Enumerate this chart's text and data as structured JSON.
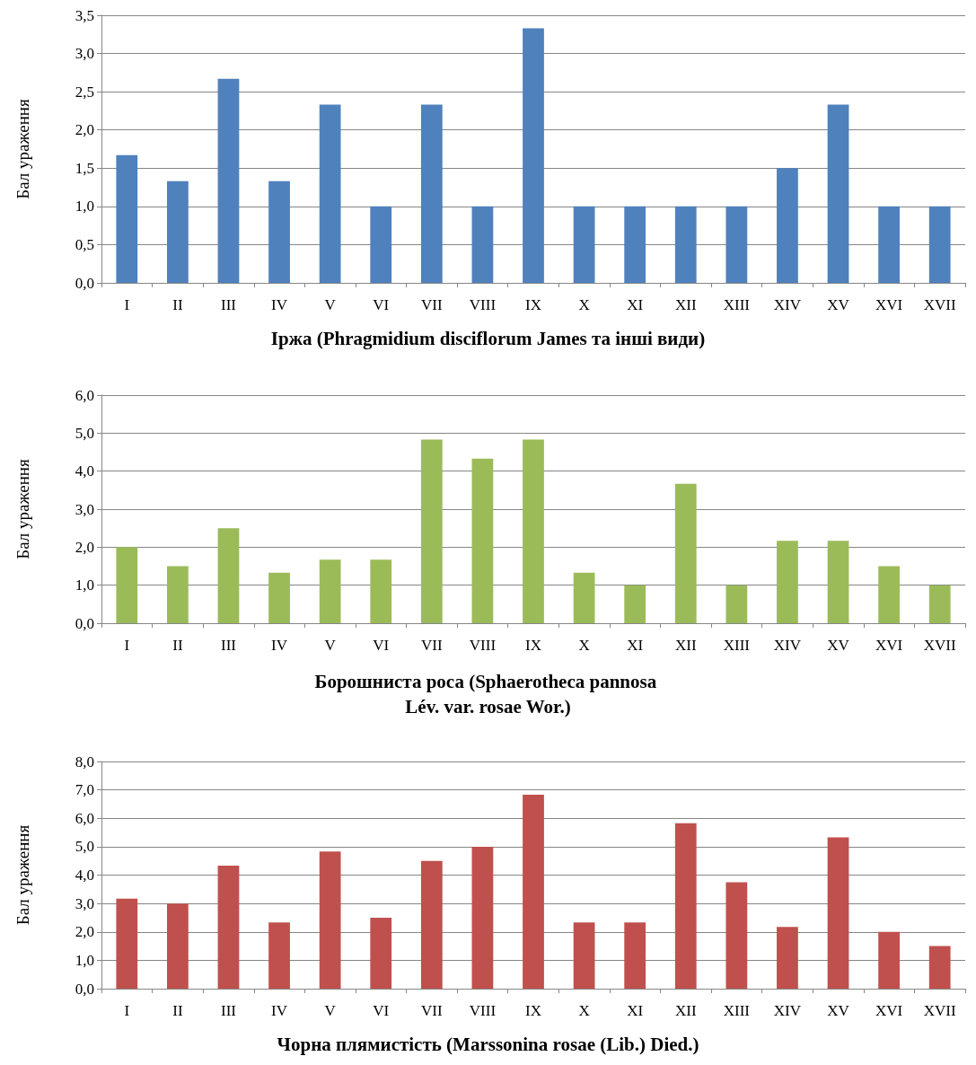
{
  "chart_data": [
    {
      "type": "bar",
      "title": "Іржа (Phragmidium disciflorum James та інші види)",
      "ylabel": "Бал ураження",
      "categories": [
        "I",
        "II",
        "III",
        "IV",
        "V",
        "VI",
        "VII",
        "VIII",
        "IX",
        "X",
        "XI",
        "XII",
        "XIII",
        "XIV",
        "XV",
        "XVI",
        "XVII"
      ],
      "values": [
        1.67,
        1.33,
        2.67,
        1.33,
        2.33,
        1.0,
        2.33,
        1.0,
        3.33,
        1.0,
        1.0,
        1.0,
        1.0,
        1.5,
        2.33,
        1.0,
        1.0
      ],
      "color": "#4f81bd",
      "ylim": [
        0,
        3.5
      ],
      "yticks": [
        {
          "value": 0,
          "label": "0,0"
        },
        {
          "value": 0.5,
          "label": "0,5"
        },
        {
          "value": 1,
          "label": "1,0"
        },
        {
          "value": 1.5,
          "label": "1,5"
        },
        {
          "value": 2,
          "label": "2,0"
        },
        {
          "value": 2.5,
          "label": "2,5"
        },
        {
          "value": 3,
          "label": "3,0"
        },
        {
          "value": 3.5,
          "label": "3,5"
        }
      ],
      "grid": "y"
    },
    {
      "type": "bar",
      "title": "Борошниста роса (Sphaerotheca pannosa Lév. var. rosae Wor.)",
      "ylabel": "Бал ураження",
      "categories": [
        "I",
        "II",
        "III",
        "IV",
        "V",
        "VI",
        "VII",
        "VIII",
        "IX",
        "X",
        "XI",
        "XII",
        "XIII",
        "XIV",
        "XV",
        "XVI",
        "XVII"
      ],
      "values": [
        2.0,
        1.5,
        2.5,
        1.33,
        1.67,
        1.67,
        4.83,
        4.33,
        4.83,
        1.33,
        1.0,
        3.67,
        1.0,
        2.17,
        2.17,
        1.5,
        1.0
      ],
      "color": "#9bbb59",
      "ylim": [
        0,
        6
      ],
      "yticks": [
        {
          "value": 0,
          "label": "0,0"
        },
        {
          "value": 1,
          "label": "1,0"
        },
        {
          "value": 2,
          "label": "2,0"
        },
        {
          "value": 3,
          "label": "3,0"
        },
        {
          "value": 4,
          "label": "4,0"
        },
        {
          "value": 5,
          "label": "5,0"
        },
        {
          "value": 6,
          "label": "6,0"
        }
      ],
      "grid": "y"
    },
    {
      "type": "bar",
      "title": "Чорна плямистість (Marssonina rosae (Lib.) Died.)",
      "ylabel": "Бал ураження",
      "categories": [
        "I",
        "II",
        "III",
        "IV",
        "V",
        "VI",
        "VII",
        "VIII",
        "IX",
        "X",
        "XI",
        "XII",
        "XIII",
        "XIV",
        "XV",
        "XVI",
        "XVII"
      ],
      "values": [
        3.17,
        3.0,
        4.33,
        2.33,
        4.83,
        2.5,
        4.5,
        5.0,
        6.83,
        2.33,
        2.33,
        5.83,
        3.75,
        2.17,
        5.33,
        2.0,
        1.5
      ],
      "color": "#c0504d",
      "ylim": [
        0,
        8
      ],
      "yticks": [
        {
          "value": 0,
          "label": "0,0"
        },
        {
          "value": 1,
          "label": "1,0"
        },
        {
          "value": 2,
          "label": "2,0"
        },
        {
          "value": 3,
          "label": "3,0"
        },
        {
          "value": 4,
          "label": "4,0"
        },
        {
          "value": 5,
          "label": "5,0"
        },
        {
          "value": 6,
          "label": "6,0"
        },
        {
          "value": 7,
          "label": "7,0"
        },
        {
          "value": 8,
          "label": "8,0"
        }
      ],
      "grid": "y"
    }
  ]
}
